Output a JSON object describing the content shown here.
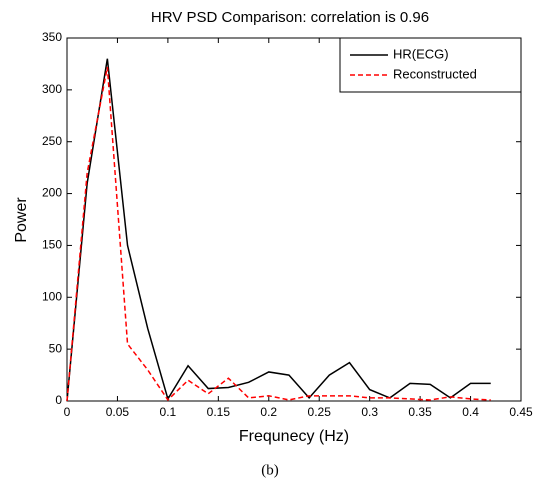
{
  "chart_data": {
    "type": "line",
    "title": "HRV PSD Comparison: correlation is 0.96",
    "x_label": "Frequnecy (Hz)",
    "y_label": "Power",
    "x": [
      0,
      0.02,
      0.04,
      0.06,
      0.08,
      0.1,
      0.12,
      0.14,
      0.16,
      0.18,
      0.2,
      0.22,
      0.24,
      0.26,
      0.28,
      0.3,
      0.32,
      0.34,
      0.36,
      0.38,
      0.4,
      0.42
    ],
    "series": [
      {
        "name": "HR(ECG)",
        "color": "#000000",
        "dashed": false,
        "values": [
          0,
          210,
          330,
          150,
          70,
          2,
          34,
          12,
          13,
          18,
          28,
          25,
          3,
          25,
          37,
          11,
          3,
          17,
          16,
          3,
          17,
          17
        ]
      },
      {
        "name": "Reconstructed",
        "color": "#ff0000",
        "dashed": true,
        "values": [
          0,
          220,
          322,
          55,
          30,
          1,
          20,
          7,
          22,
          3,
          5,
          1,
          5,
          5,
          5,
          3,
          3,
          2,
          1,
          4,
          2,
          1
        ]
      }
    ],
    "xlim": [
      0,
      0.45
    ],
    "xticks": [
      0,
      0.05,
      0.1,
      0.15,
      0.2,
      0.25,
      0.3,
      0.35,
      0.4,
      0.45
    ],
    "ylim": [
      0,
      350
    ],
    "yticks": [
      0,
      50,
      100,
      150,
      200,
      250,
      300,
      350
    ],
    "grid": false,
    "legend": "upper right"
  },
  "caption": "(b)"
}
